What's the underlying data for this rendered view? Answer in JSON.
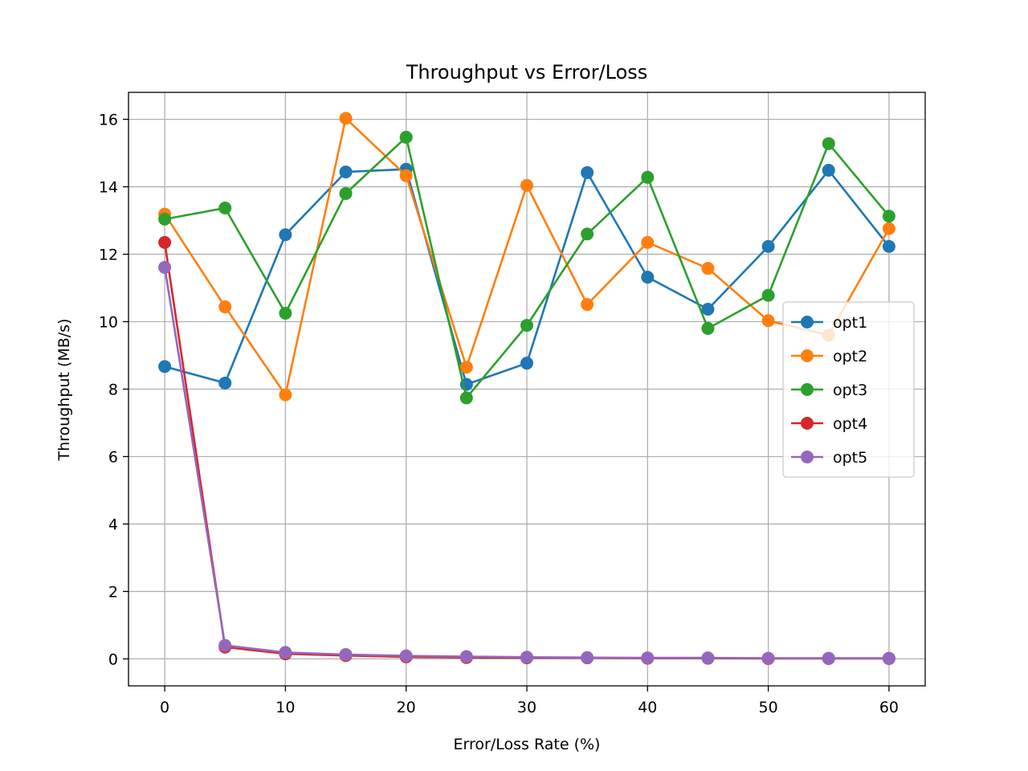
{
  "chart_data": {
    "type": "line",
    "title": "Throughput vs Error/Loss",
    "xlabel": "Error/Loss Rate (%)",
    "ylabel": "Throughput (MB/s)",
    "xlim": [
      -3,
      63
    ],
    "ylim": [
      -0.8,
      16.8
    ],
    "xticks": [
      0,
      10,
      20,
      30,
      40,
      50,
      60
    ],
    "yticks": [
      0,
      2,
      4,
      6,
      8,
      10,
      12,
      14,
      16
    ],
    "grid": true,
    "legend_position": "right",
    "x": [
      0,
      5,
      10,
      15,
      20,
      25,
      30,
      35,
      40,
      45,
      50,
      55,
      60
    ],
    "series": [
      {
        "name": "opt1",
        "color": "#1f77b4",
        "values": [
          8.67,
          8.18,
          12.58,
          14.44,
          14.52,
          8.14,
          8.77,
          14.42,
          11.32,
          10.37,
          12.23,
          14.49,
          12.23
        ]
      },
      {
        "name": "opt2",
        "color": "#ff7f0e",
        "values": [
          13.19,
          10.44,
          7.83,
          16.03,
          14.33,
          8.65,
          14.04,
          10.51,
          12.35,
          11.58,
          10.03,
          9.6,
          12.76
        ]
      },
      {
        "name": "opt3",
        "color": "#2ca02c",
        "values": [
          13.04,
          13.37,
          10.25,
          13.8,
          15.47,
          7.74,
          9.89,
          12.6,
          14.28,
          9.8,
          10.78,
          15.28,
          13.13
        ]
      },
      {
        "name": "opt4",
        "color": "#d62728",
        "values": [
          12.35,
          0.35,
          0.15,
          0.1,
          0.06,
          0.04,
          0.03,
          0.03,
          0.02,
          0.02,
          0.01,
          0.01,
          0.01
        ]
      },
      {
        "name": "opt5",
        "color": "#9467bd",
        "values": [
          11.61,
          0.4,
          0.19,
          0.13,
          0.09,
          0.07,
          0.05,
          0.04,
          0.03,
          0.03,
          0.02,
          0.02,
          0.02
        ]
      }
    ]
  }
}
